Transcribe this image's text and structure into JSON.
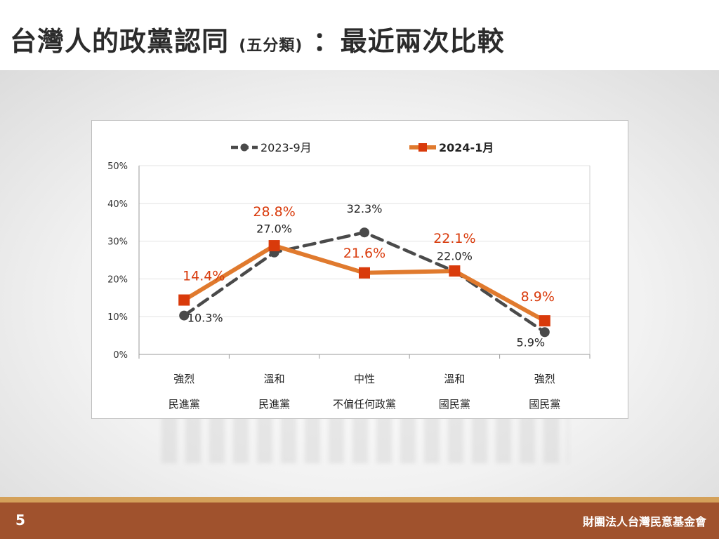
{
  "title": {
    "main": "台灣人的政黨認同",
    "sub": "(五分類)",
    "colon_rest": "：最近兩次比較"
  },
  "footer": {
    "page_number": "5",
    "organization": "財團法人台灣民意基金會"
  },
  "colors": {
    "series_2023": "#4a4a4a",
    "series_2024": "#e07a2e",
    "marker_2024": "#d93a0b",
    "footer_bg": "#a0522d",
    "footer_stripe": "#d4a15a"
  },
  "chart_data": {
    "type": "line",
    "categories": [
      [
        "強烈",
        "民進黨"
      ],
      [
        "溫和",
        "民進黨"
      ],
      [
        "中性",
        "不偏任何政黨"
      ],
      [
        "溫和",
        "國民黨"
      ],
      [
        "強烈",
        "國民黨"
      ]
    ],
    "series": [
      {
        "name": "2023-9月",
        "values": [
          10.3,
          27.0,
          32.3,
          22.0,
          5.9
        ],
        "labels": [
          "10.3%",
          "27.0%",
          "32.3%",
          "22.0%",
          "5.9%"
        ],
        "style": "dashed"
      },
      {
        "name": "2024-1月",
        "values": [
          14.4,
          28.8,
          21.6,
          22.1,
          8.9
        ],
        "labels": [
          "14.4%",
          "28.8%",
          "21.6%",
          "22.1%",
          "8.9%"
        ],
        "style": "solid"
      }
    ],
    "yticks": [
      "0%",
      "10%",
      "20%",
      "30%",
      "40%",
      "50%"
    ],
    "ylim": [
      0,
      50
    ],
    "grid": true,
    "legend_position": "top"
  }
}
